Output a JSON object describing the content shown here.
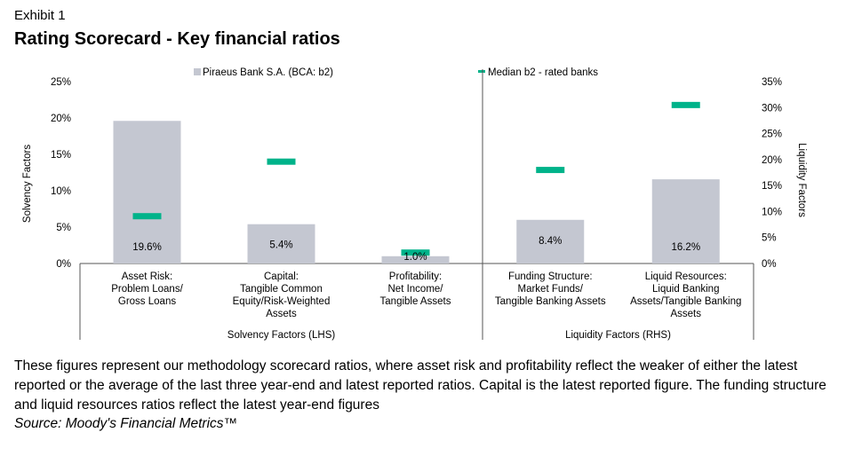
{
  "exhibit_label": "Exhibit 1",
  "title": "Rating Scorecard - Key financial ratios",
  "caption": "These figures represent our methodology scorecard ratios, where asset risk and profitability reflect the weaker of either the latest reported or the average of the last three year-end and latest reported ratios. Capital is the latest reported figure. The funding structure and liquid resources ratios reflect the latest year-end figures",
  "source": "Source: Moody's Financial Metrics™",
  "chart_data": {
    "type": "bar",
    "title": "Rating Scorecard - Key financial ratios",
    "legend": {
      "placement": "top",
      "bar_label": "Piraeus Bank S.A. (BCA: b2)",
      "marker_label": "Median b2 - rated banks"
    },
    "colors": {
      "bar": "#c4c7d1",
      "marker": "#00b38a",
      "axis": "#555555"
    },
    "left_axis": {
      "label": "Solvency Factors",
      "min": 0,
      "max": 25,
      "step": 5,
      "ticks": [
        "0%",
        "5%",
        "10%",
        "15%",
        "20%",
        "25%"
      ]
    },
    "right_axis": {
      "label": "Liquidity Factors",
      "min": 0,
      "max": 35,
      "step": 5,
      "ticks": [
        "0%",
        "5%",
        "10%",
        "15%",
        "20%",
        "25%",
        "30%",
        "35%"
      ]
    },
    "groups": [
      {
        "label": "Solvency Factors (LHS)",
        "axis": "left"
      },
      {
        "label": "Liquidity Factors (RHS)",
        "axis": "right"
      }
    ],
    "categories": [
      {
        "lines": [
          "Asset Risk:",
          "Problem Loans/",
          "Gross Loans"
        ],
        "group": 0,
        "axis": "left",
        "value": 19.6,
        "value_label": "19.6%",
        "median": 6.5
      },
      {
        "lines": [
          "Capital:",
          "Tangible Common",
          "Equity/Risk-Weighted",
          "Assets"
        ],
        "group": 0,
        "axis": "left",
        "value": 5.4,
        "value_label": "5.4%",
        "median": 14.0
      },
      {
        "lines": [
          "Profitability:",
          "Net Income/",
          "Tangible Assets"
        ],
        "group": 0,
        "axis": "left",
        "value": 1.0,
        "value_label": "1.0%",
        "median": 1.5
      },
      {
        "lines": [
          "Funding Structure:",
          "Market Funds/",
          "Tangible Banking Assets"
        ],
        "group": 1,
        "axis": "right",
        "value": 8.4,
        "value_label": "8.4%",
        "median": 18.0
      },
      {
        "lines": [
          "Liquid Resources:",
          "Liquid Banking",
          "Assets/Tangible Banking",
          "Assets"
        ],
        "group": 1,
        "axis": "right",
        "value": 16.2,
        "value_label": "16.2%",
        "median": 30.5
      }
    ]
  }
}
